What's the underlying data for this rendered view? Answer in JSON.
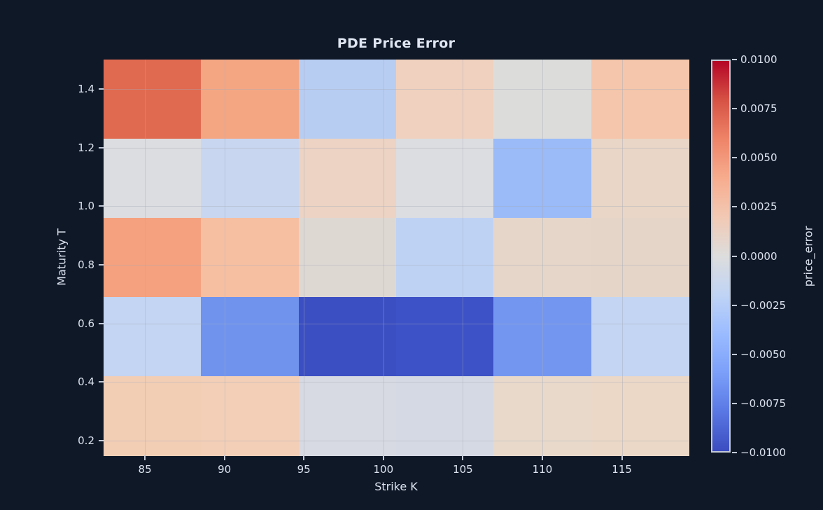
{
  "title": "PDE Price Error",
  "colors": {
    "background": "#0f1827",
    "text": "#dce3ef",
    "title_text": "#dfe6f2",
    "tick_mark": "#c2cad8",
    "gridline": "rgba(168,172,185,0.42)",
    "colorbar_border": "#c3c9d6"
  },
  "chart_data": {
    "type": "heatmap",
    "title": "PDE Price Error",
    "xlabel": "Strike K",
    "ylabel": "Maturity T",
    "colorbar_label": "price_error",
    "colormap": "coolwarm",
    "vmin": -0.01,
    "vmax": 0.01,
    "grid": true,
    "x_range": [
      82.4,
      119.2
    ],
    "y_range": [
      0.15,
      1.5
    ],
    "n_cols": 6,
    "n_rows": 5,
    "x_ticks": [
      85,
      90,
      95,
      100,
      105,
      110,
      115
    ],
    "x_tick_labels": [
      "85",
      "90",
      "95",
      "100",
      "105",
      "110",
      "115"
    ],
    "y_ticks": [
      1.4,
      1.2,
      1.0,
      0.8,
      0.6,
      0.4,
      0.2
    ],
    "y_tick_labels": [
      "1.4",
      "1.2",
      "1.0",
      "0.8",
      "0.6",
      "0.4",
      "0.2"
    ],
    "col_strike_centers": [
      85.5,
      91.6,
      97.7,
      103.8,
      109.9,
      116.1
    ],
    "row_maturity_centers_top_to_bottom": [
      1.365,
      1.095,
      0.825,
      0.555,
      0.285
    ],
    "values_rows_top_to_bottom": [
      [
        0.0071,
        0.0045,
        -0.0025,
        0.0018,
        0.0001,
        0.0025
      ],
      [
        -0.0002,
        -0.0015,
        0.0017,
        -0.0002,
        -0.004,
        0.0014
      ],
      [
        0.0044,
        0.003,
        0.0004,
        -0.0022,
        0.0011,
        0.0011
      ],
      [
        -0.0018,
        -0.0065,
        -0.0097,
        -0.0095,
        -0.0063,
        -0.0018
      ],
      [
        0.0021,
        0.0021,
        -0.0006,
        -0.0008,
        0.0011,
        0.0014
      ]
    ],
    "cell_colors_rows_top_to_bottom": [
      [
        "#e06a50",
        "#f4a683",
        "#b8cdf2",
        "#f0d1bf",
        "#dcdcdb",
        "#f5c6ab"
      ],
      [
        "#dcdde0",
        "#c8d6f0",
        "#ecd3c3",
        "#dcdde0",
        "#9abbf8",
        "#e9d6c6"
      ],
      [
        "#f5a17f",
        "#f7bfa2",
        "#ded8d3",
        "#bed2f4",
        "#e6d6c9",
        "#e5d5c8"
      ],
      [
        "#c3d5f2",
        "#7093ee",
        "#3b4fc2",
        "#3d52c6",
        "#7396f0",
        "#c3d5f2"
      ],
      [
        "#f2ceb5",
        "#f3cfb7",
        "#d7dae2",
        "#d5d9e3",
        "#e8d9cb",
        "#ebd8c7"
      ]
    ],
    "colorbar_ticks": [
      0.01,
      0.0075,
      0.005,
      0.0025,
      0.0,
      -0.0025,
      -0.005,
      -0.0075,
      -0.01
    ],
    "colorbar_tick_labels": [
      "0.0100",
      "0.0075",
      "0.0050",
      "0.0025",
      "0.0000",
      "−0.0025",
      "−0.0050",
      "−0.0075",
      "−0.0100"
    ],
    "colorbar_gradient_top_to_bottom": [
      "#b40426",
      "#d65244",
      "#ee8468",
      "#f7ac8e",
      "#f2c9b4",
      "#dddddd",
      "#c0d4f5",
      "#9abbff",
      "#7b9ff9",
      "#5977e3",
      "#3b4cc0"
    ],
    "legend_position": "right-colorbar"
  }
}
